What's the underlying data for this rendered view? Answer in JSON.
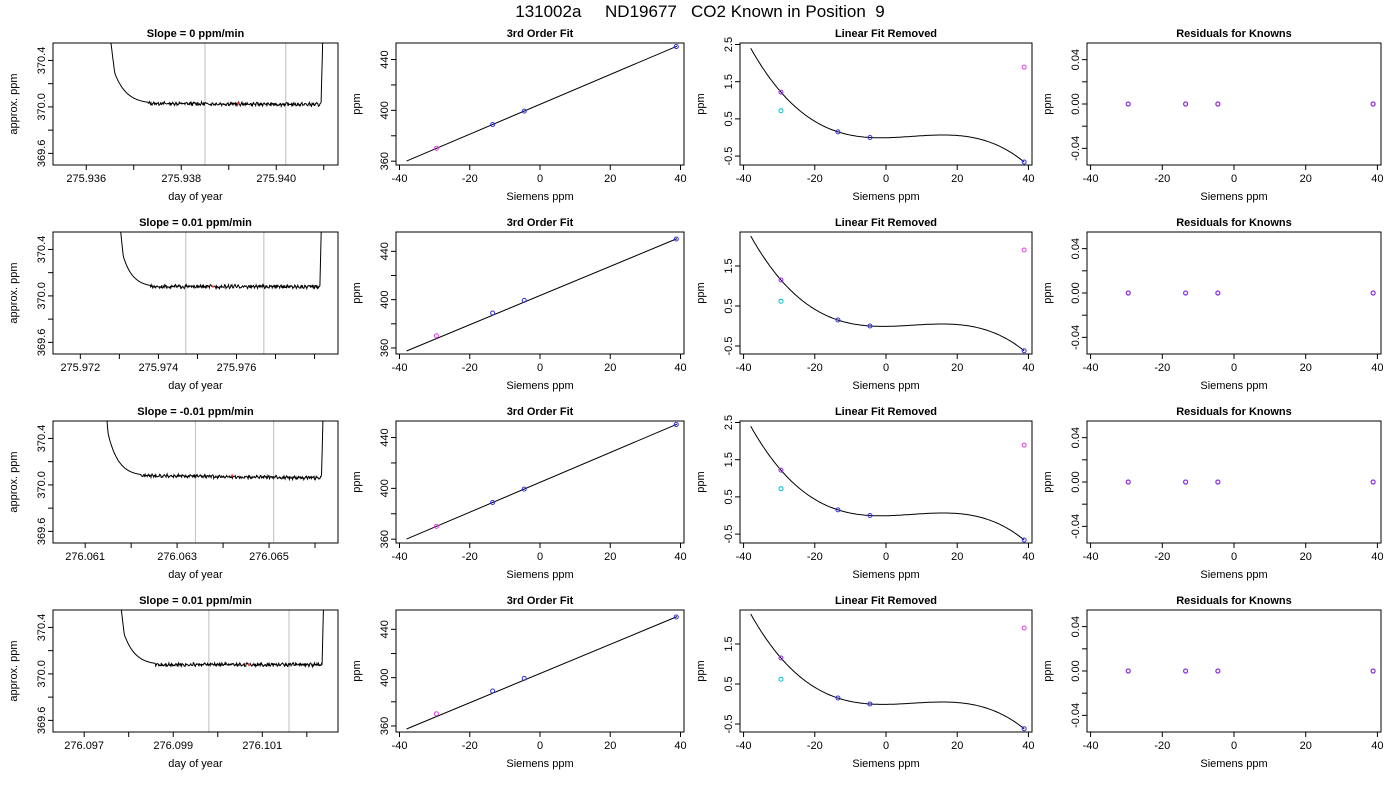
{
  "header": {
    "title": "131002a     ND19677   CO2 Known in Position  9"
  },
  "colors": {
    "line": "#000000",
    "vertical_marker": "#c8c8c8",
    "cyan": "#00bcd4",
    "magenta": "#e040e0",
    "blue": "#3030e0",
    "purple": "#8a2be2",
    "red": "#ff3030"
  },
  "chart_data": [
    {
      "row": 1,
      "type": "line",
      "title": "Slope =  0  ppm/min",
      "xlabel": "day of year",
      "ylabel": "approx. ppm",
      "xlim": [
        275.9353,
        275.9413
      ],
      "ylim": [
        369.5,
        370.55
      ],
      "x_ticks": [
        275.936,
        275.937,
        275.938,
        275.939,
        275.94,
        275.941
      ],
      "x_tick_labels": [
        "275.936",
        "",
        "275.938",
        "",
        "275.940",
        ""
      ],
      "y_ticks": [
        369.6,
        369.8,
        370.0,
        370.2,
        370.4
      ],
      "y_tick_labels": [
        "369.6",
        "",
        "370.0",
        "",
        "370.4"
      ],
      "vertical_lines": [
        275.9385,
        275.9402
      ],
      "trace": {
        "start": 275.9363,
        "settle_start": 275.9366,
        "settle_end": 275.9373,
        "end": 275.941,
        "level": 370.03,
        "drift": -0.01
      },
      "red_point": [
        275.9392,
        370.03
      ]
    },
    {
      "row": 1,
      "type": "line",
      "title": "3rd Order Fit",
      "xlabel": "Siemens ppm",
      "ylabel": "ppm",
      "xlim": [
        -41,
        41
      ],
      "ylim": [
        357,
        453
      ],
      "x_ticks": [
        -40,
        -20,
        0,
        20,
        40
      ],
      "x_tick_labels": [
        "-40",
        "-20",
        "0",
        "20",
        "40"
      ],
      "y_ticks": [
        360,
        380,
        400,
        420,
        440
      ],
      "y_tick_labels": [
        "360",
        "",
        "400",
        "",
        "440"
      ],
      "fit_line": {
        "x": [
          -38,
          39
        ],
        "y": [
          360.1,
          450.5
        ]
      },
      "points": [
        {
          "x": -29.5,
          "y": 370.1,
          "color": "magenta"
        },
        {
          "x": -13.5,
          "y": 388.9,
          "color": "blue"
        },
        {
          "x": -4.5,
          "y": 399.4,
          "color": "blue"
        },
        {
          "x": 38.8,
          "y": 450.2,
          "color": "blue"
        }
      ]
    },
    {
      "row": 1,
      "type": "line",
      "title": "Linear Fit Removed",
      "xlabel": "Siemens ppm",
      "ylabel": "ppm",
      "xlim": [
        -41,
        41
      ],
      "ylim": [
        -0.74,
        2.54
      ],
      "x_ticks": [
        -40,
        -20,
        0,
        20,
        40
      ],
      "x_tick_labels": [
        "-40",
        "-20",
        "0",
        "20",
        "40"
      ],
      "y_ticks": [
        -0.5,
        0.5,
        1.5,
        2.5
      ],
      "y_tick_labels": [
        "-0.5",
        "0.5",
        "1.5",
        "2.5"
      ],
      "curve_points": [
        {
          "x": -38,
          "y": 2.4
        },
        {
          "x": -29.5,
          "y": 1.22
        },
        {
          "x": -13.5,
          "y": 0.15
        },
        {
          "x": -4.5,
          "y": 0.0
        },
        {
          "x": 38.8,
          "y": -0.66
        }
      ],
      "points": [
        {
          "x": -29.5,
          "y": 1.22,
          "color": "purple"
        },
        {
          "x": -29.5,
          "y": 0.72,
          "color": "cyan"
        },
        {
          "x": -13.5,
          "y": 0.15,
          "color": "blue"
        },
        {
          "x": -4.5,
          "y": 0.0,
          "color": "blue"
        },
        {
          "x": 38.8,
          "y": 1.89,
          "color": "magenta"
        },
        {
          "x": 38.8,
          "y": -0.66,
          "color": "blue"
        }
      ]
    },
    {
      "row": 1,
      "type": "scatter",
      "title": "Residuals for Knowns",
      "xlabel": "Siemens ppm",
      "ylabel": "ppm",
      "xlim": [
        -41,
        41
      ],
      "ylim": [
        -0.055,
        0.055
      ],
      "x_ticks": [
        -40,
        -20,
        0,
        20,
        40
      ],
      "x_tick_labels": [
        "-40",
        "-20",
        "0",
        "20",
        "40"
      ],
      "y_ticks": [
        -0.04,
        -0.02,
        0.0,
        0.02,
        0.04
      ],
      "y_tick_labels": [
        "-0.04",
        "",
        "0.00",
        "",
        "0.04"
      ],
      "points": [
        {
          "x": -29.5,
          "y": 0,
          "color": "purple"
        },
        {
          "x": -13.5,
          "y": 0,
          "color": "purple"
        },
        {
          "x": -4.5,
          "y": 0,
          "color": "purple"
        },
        {
          "x": 38.8,
          "y": 0,
          "color": "purple"
        }
      ]
    },
    {
      "row": 2,
      "type": "line",
      "title": "Slope =  0.01  ppm/min",
      "xlabel": "day of year",
      "ylabel": "approx. ppm",
      "xlim": [
        275.9713,
        275.9786
      ],
      "ylim": [
        369.5,
        370.55
      ],
      "x_ticks": [
        275.972,
        275.973,
        275.974,
        275.975,
        275.976,
        275.977,
        275.978
      ],
      "x_tick_labels": [
        "275.972",
        "",
        "275.974",
        "",
        "275.976",
        "",
        ""
      ],
      "y_ticks": [
        369.6,
        369.8,
        370.0,
        370.2,
        370.4
      ],
      "y_tick_labels": [
        "369.6",
        "",
        "370.0",
        "",
        "370.4"
      ],
      "vertical_lines": [
        275.9747,
        275.9767
      ],
      "trace": {
        "start": 275.9728,
        "settle_start": 275.9731,
        "settle_end": 275.9738,
        "end": 275.9782,
        "level": 370.08,
        "drift": 0.0
      },
      "red_point": [
        275.9754,
        370.08
      ]
    },
    {
      "row": 2,
      "type": "line",
      "title": "3rd Order Fit",
      "xlabel": "Siemens ppm",
      "ylabel": "ppm",
      "xlim": [
        -41,
        41
      ],
      "ylim": [
        355,
        456
      ],
      "x_ticks": [
        -40,
        -20,
        0,
        20,
        40
      ],
      "x_tick_labels": [
        "-40",
        "-20",
        "0",
        "20",
        "40"
      ],
      "y_ticks": [
        360,
        380,
        400,
        420,
        440
      ],
      "y_tick_labels": [
        "360",
        "",
        "400",
        "",
        "440"
      ],
      "fit_line": {
        "x": [
          -38,
          39
        ],
        "y": [
          357.5,
          450.5
        ]
      },
      "points": [
        {
          "x": -29.5,
          "y": 370.1,
          "color": "magenta"
        },
        {
          "x": -13.5,
          "y": 388.9,
          "color": "blue"
        },
        {
          "x": -4.5,
          "y": 399.4,
          "color": "blue"
        },
        {
          "x": 38.8,
          "y": 450.2,
          "color": "blue"
        }
      ]
    },
    {
      "row": 2,
      "type": "line",
      "title": "Linear Fit Removed",
      "xlabel": "Siemens ppm",
      "ylabel": "ppm",
      "xlim": [
        -41,
        41
      ],
      "ylim": [
        -0.7,
        2.35
      ],
      "x_ticks": [
        -40,
        -20,
        0,
        20,
        40
      ],
      "x_tick_labels": [
        "-40",
        "-20",
        "0",
        "20",
        "40"
      ],
      "y_ticks": [
        -0.5,
        0.5,
        1.5
      ],
      "y_tick_labels": [
        "-0.5",
        "0.5",
        "1.5"
      ],
      "curve_points": [
        {
          "x": -38,
          "y": 2.25
        },
        {
          "x": -29.5,
          "y": 1.15
        },
        {
          "x": -13.5,
          "y": 0.15
        },
        {
          "x": -4.5,
          "y": 0.0
        },
        {
          "x": 38.8,
          "y": -0.62
        }
      ],
      "points": [
        {
          "x": -29.5,
          "y": 1.15,
          "color": "purple"
        },
        {
          "x": -29.5,
          "y": 0.62,
          "color": "cyan"
        },
        {
          "x": -13.5,
          "y": 0.15,
          "color": "blue"
        },
        {
          "x": -4.5,
          "y": 0.0,
          "color": "blue"
        },
        {
          "x": 38.8,
          "y": 1.9,
          "color": "magenta"
        },
        {
          "x": 38.8,
          "y": -0.62,
          "color": "blue"
        }
      ]
    },
    {
      "row": 2,
      "type": "scatter",
      "title": "Residuals for Knowns",
      "xlabel": "Siemens ppm",
      "ylabel": "ppm",
      "xlim": [
        -41,
        41
      ],
      "ylim": [
        -0.055,
        0.055
      ],
      "x_ticks": [
        -40,
        -20,
        0,
        20,
        40
      ],
      "x_tick_labels": [
        "-40",
        "-20",
        "0",
        "20",
        "40"
      ],
      "y_ticks": [
        -0.04,
        -0.02,
        0.0,
        0.02,
        0.04
      ],
      "y_tick_labels": [
        "-0.04",
        "",
        "0.00",
        "",
        "0.04"
      ],
      "points": [
        {
          "x": -29.5,
          "y": 0,
          "color": "purple"
        },
        {
          "x": -13.5,
          "y": 0,
          "color": "purple"
        },
        {
          "x": -4.5,
          "y": 0,
          "color": "purple"
        },
        {
          "x": 38.8,
          "y": 0,
          "color": "purple"
        }
      ]
    },
    {
      "row": 3,
      "type": "line",
      "title": "Slope =  -0.01  ppm/min",
      "xlabel": "day of year",
      "ylabel": "approx. ppm",
      "xlim": [
        276.0603,
        276.0665
      ],
      "ylim": [
        369.5,
        370.55
      ],
      "x_ticks": [
        276.061,
        276.062,
        276.063,
        276.064,
        276.065,
        276.066
      ],
      "x_tick_labels": [
        "276.061",
        "",
        "276.063",
        "",
        "276.065",
        ""
      ],
      "y_ticks": [
        369.6,
        369.8,
        370.0,
        370.2,
        370.4
      ],
      "y_tick_labels": [
        "369.6",
        "",
        "370.0",
        "",
        "370.4"
      ],
      "vertical_lines": [
        276.0634,
        276.0651
      ],
      "trace": {
        "start": 276.0613,
        "settle_start": 276.0615,
        "settle_end": 276.0622,
        "end": 276.0662,
        "level": 370.08,
        "drift": -0.02
      },
      "red_point": [
        276.0642,
        370.08
      ]
    },
    {
      "row": 3,
      "type": "line",
      "title": "3rd Order Fit",
      "xlabel": "Siemens ppm",
      "ylabel": "ppm",
      "xlim": [
        -41,
        41
      ],
      "ylim": [
        357,
        453
      ],
      "x_ticks": [
        -40,
        -20,
        0,
        20,
        40
      ],
      "x_tick_labels": [
        "-40",
        "-20",
        "0",
        "20",
        "40"
      ],
      "y_ticks": [
        360,
        380,
        400,
        420,
        440
      ],
      "y_tick_labels": [
        "360",
        "",
        "400",
        "",
        "440"
      ],
      "fit_line": {
        "x": [
          -38,
          39
        ],
        "y": [
          360.1,
          450.5
        ]
      },
      "points": [
        {
          "x": -29.5,
          "y": 370.1,
          "color": "magenta"
        },
        {
          "x": -13.5,
          "y": 388.9,
          "color": "blue"
        },
        {
          "x": -4.5,
          "y": 399.4,
          "color": "blue"
        },
        {
          "x": 38.8,
          "y": 450.2,
          "color": "blue"
        }
      ]
    },
    {
      "row": 3,
      "type": "line",
      "title": "Linear Fit Removed",
      "xlabel": "Siemens ppm",
      "ylabel": "ppm",
      "xlim": [
        -41,
        41
      ],
      "ylim": [
        -0.74,
        2.54
      ],
      "x_ticks": [
        -40,
        -20,
        0,
        20,
        40
      ],
      "x_tick_labels": [
        "-40",
        "-20",
        "0",
        "20",
        "40"
      ],
      "y_ticks": [
        -0.5,
        0.5,
        1.5,
        2.5
      ],
      "y_tick_labels": [
        "-0.5",
        "0.5",
        "1.5",
        "2.5"
      ],
      "curve_points": [
        {
          "x": -38,
          "y": 2.4
        },
        {
          "x": -29.5,
          "y": 1.22
        },
        {
          "x": -13.5,
          "y": 0.15
        },
        {
          "x": -4.5,
          "y": 0.0
        },
        {
          "x": 38.8,
          "y": -0.66
        }
      ],
      "points": [
        {
          "x": -29.5,
          "y": 1.22,
          "color": "purple"
        },
        {
          "x": -29.5,
          "y": 0.72,
          "color": "cyan"
        },
        {
          "x": -13.5,
          "y": 0.15,
          "color": "blue"
        },
        {
          "x": -4.5,
          "y": 0.0,
          "color": "blue"
        },
        {
          "x": 38.8,
          "y": 1.89,
          "color": "magenta"
        },
        {
          "x": 38.8,
          "y": -0.66,
          "color": "blue"
        }
      ]
    },
    {
      "row": 3,
      "type": "scatter",
      "title": "Residuals for Knowns",
      "xlabel": "Siemens ppm",
      "ylabel": "ppm",
      "xlim": [
        -41,
        41
      ],
      "ylim": [
        -0.055,
        0.055
      ],
      "x_ticks": [
        -40,
        -20,
        0,
        20,
        40
      ],
      "x_tick_labels": [
        "-40",
        "-20",
        "0",
        "20",
        "40"
      ],
      "y_ticks": [
        -0.04,
        -0.02,
        0.0,
        0.02,
        0.04
      ],
      "y_tick_labels": [
        "-0.04",
        "",
        "0.00",
        "",
        "0.04"
      ],
      "points": [
        {
          "x": -29.5,
          "y": 0,
          "color": "purple"
        },
        {
          "x": -13.5,
          "y": 0,
          "color": "purple"
        },
        {
          "x": -4.5,
          "y": 0,
          "color": "purple"
        },
        {
          "x": 38.8,
          "y": 0,
          "color": "purple"
        }
      ]
    },
    {
      "row": 4,
      "type": "line",
      "title": "Slope =  0.01  ppm/min",
      "xlabel": "day of year",
      "ylabel": "approx. ppm",
      "xlim": [
        276.0963,
        276.1027
      ],
      "ylim": [
        369.5,
        370.55
      ],
      "x_ticks": [
        276.097,
        276.098,
        276.099,
        276.1,
        276.101,
        276.102
      ],
      "x_tick_labels": [
        "276.097",
        "",
        "276.099",
        "",
        "276.101",
        ""
      ],
      "y_ticks": [
        369.6,
        369.8,
        370.0,
        370.2,
        370.4
      ],
      "y_tick_labels": [
        "369.6",
        "",
        "370.0",
        "",
        "370.4"
      ],
      "vertical_lines": [
        276.0998,
        276.1016
      ],
      "trace": {
        "start": 276.0976,
        "settle_start": 276.0979,
        "settle_end": 276.0986,
        "end": 276.1024,
        "level": 370.08,
        "drift": 0.0
      },
      "red_point": [
        276.1007,
        370.08
      ]
    },
    {
      "row": 4,
      "type": "line",
      "title": "3rd Order Fit",
      "xlabel": "Siemens ppm",
      "ylabel": "ppm",
      "xlim": [
        -41,
        41
      ],
      "ylim": [
        355,
        456
      ],
      "x_ticks": [
        -40,
        -20,
        0,
        20,
        40
      ],
      "x_tick_labels": [
        "-40",
        "-20",
        "0",
        "20",
        "40"
      ],
      "y_ticks": [
        360,
        380,
        400,
        420,
        440
      ],
      "y_tick_labels": [
        "360",
        "",
        "400",
        "",
        "440"
      ],
      "fit_line": {
        "x": [
          -38,
          39
        ],
        "y": [
          357.5,
          450.5
        ]
      },
      "points": [
        {
          "x": -29.5,
          "y": 370.1,
          "color": "magenta"
        },
        {
          "x": -13.5,
          "y": 388.9,
          "color": "blue"
        },
        {
          "x": -4.5,
          "y": 399.4,
          "color": "blue"
        },
        {
          "x": 38.8,
          "y": 450.2,
          "color": "blue"
        }
      ]
    },
    {
      "row": 4,
      "type": "line",
      "title": "Linear Fit Removed",
      "xlabel": "Siemens ppm",
      "ylabel": "ppm",
      "xlim": [
        -41,
        41
      ],
      "ylim": [
        -0.7,
        2.35
      ],
      "x_ticks": [
        -40,
        -20,
        0,
        20,
        40
      ],
      "x_tick_labels": [
        "-40",
        "-20",
        "0",
        "20",
        "40"
      ],
      "y_ticks": [
        -0.5,
        0.5,
        1.5
      ],
      "y_tick_labels": [
        "-0.5",
        "0.5",
        "1.5"
      ],
      "curve_points": [
        {
          "x": -38,
          "y": 2.25
        },
        {
          "x": -29.5,
          "y": 1.15
        },
        {
          "x": -13.5,
          "y": 0.15
        },
        {
          "x": -4.5,
          "y": 0.0
        },
        {
          "x": 38.8,
          "y": -0.62
        }
      ],
      "points": [
        {
          "x": -29.5,
          "y": 1.15,
          "color": "purple"
        },
        {
          "x": -29.5,
          "y": 0.62,
          "color": "cyan"
        },
        {
          "x": -13.5,
          "y": 0.15,
          "color": "blue"
        },
        {
          "x": -4.5,
          "y": 0.0,
          "color": "blue"
        },
        {
          "x": 38.8,
          "y": 1.9,
          "color": "magenta"
        },
        {
          "x": 38.8,
          "y": -0.62,
          "color": "blue"
        }
      ]
    },
    {
      "row": 4,
      "type": "scatter",
      "title": "Residuals for Knowns",
      "xlabel": "Siemens ppm",
      "ylabel": "ppm",
      "xlim": [
        -41,
        41
      ],
      "ylim": [
        -0.055,
        0.055
      ],
      "x_ticks": [
        -40,
        -20,
        0,
        20,
        40
      ],
      "x_tick_labels": [
        "-40",
        "-20",
        "0",
        "20",
        "40"
      ],
      "y_ticks": [
        -0.04,
        -0.02,
        0.0,
        0.02,
        0.04
      ],
      "y_tick_labels": [
        "-0.04",
        "",
        "0.00",
        "",
        "0.04"
      ],
      "points": [
        {
          "x": -29.5,
          "y": 0,
          "color": "purple"
        },
        {
          "x": -13.5,
          "y": 0,
          "color": "purple"
        },
        {
          "x": -4.5,
          "y": 0,
          "color": "purple"
        },
        {
          "x": 38.8,
          "y": 0,
          "color": "purple"
        }
      ]
    }
  ]
}
